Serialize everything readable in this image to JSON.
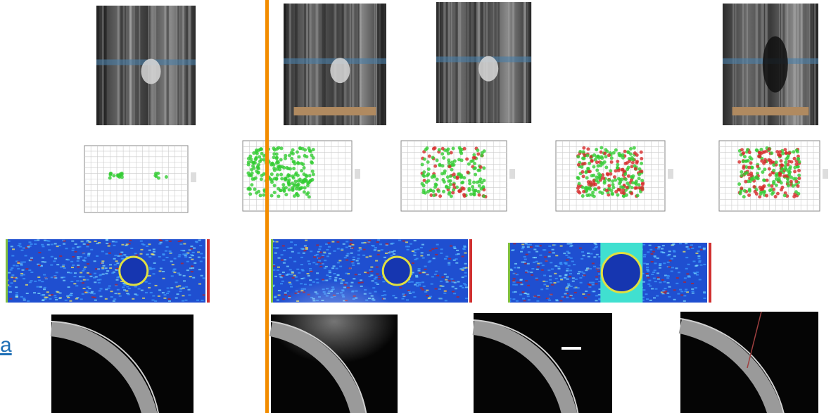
{
  "link_text": "a"
}
